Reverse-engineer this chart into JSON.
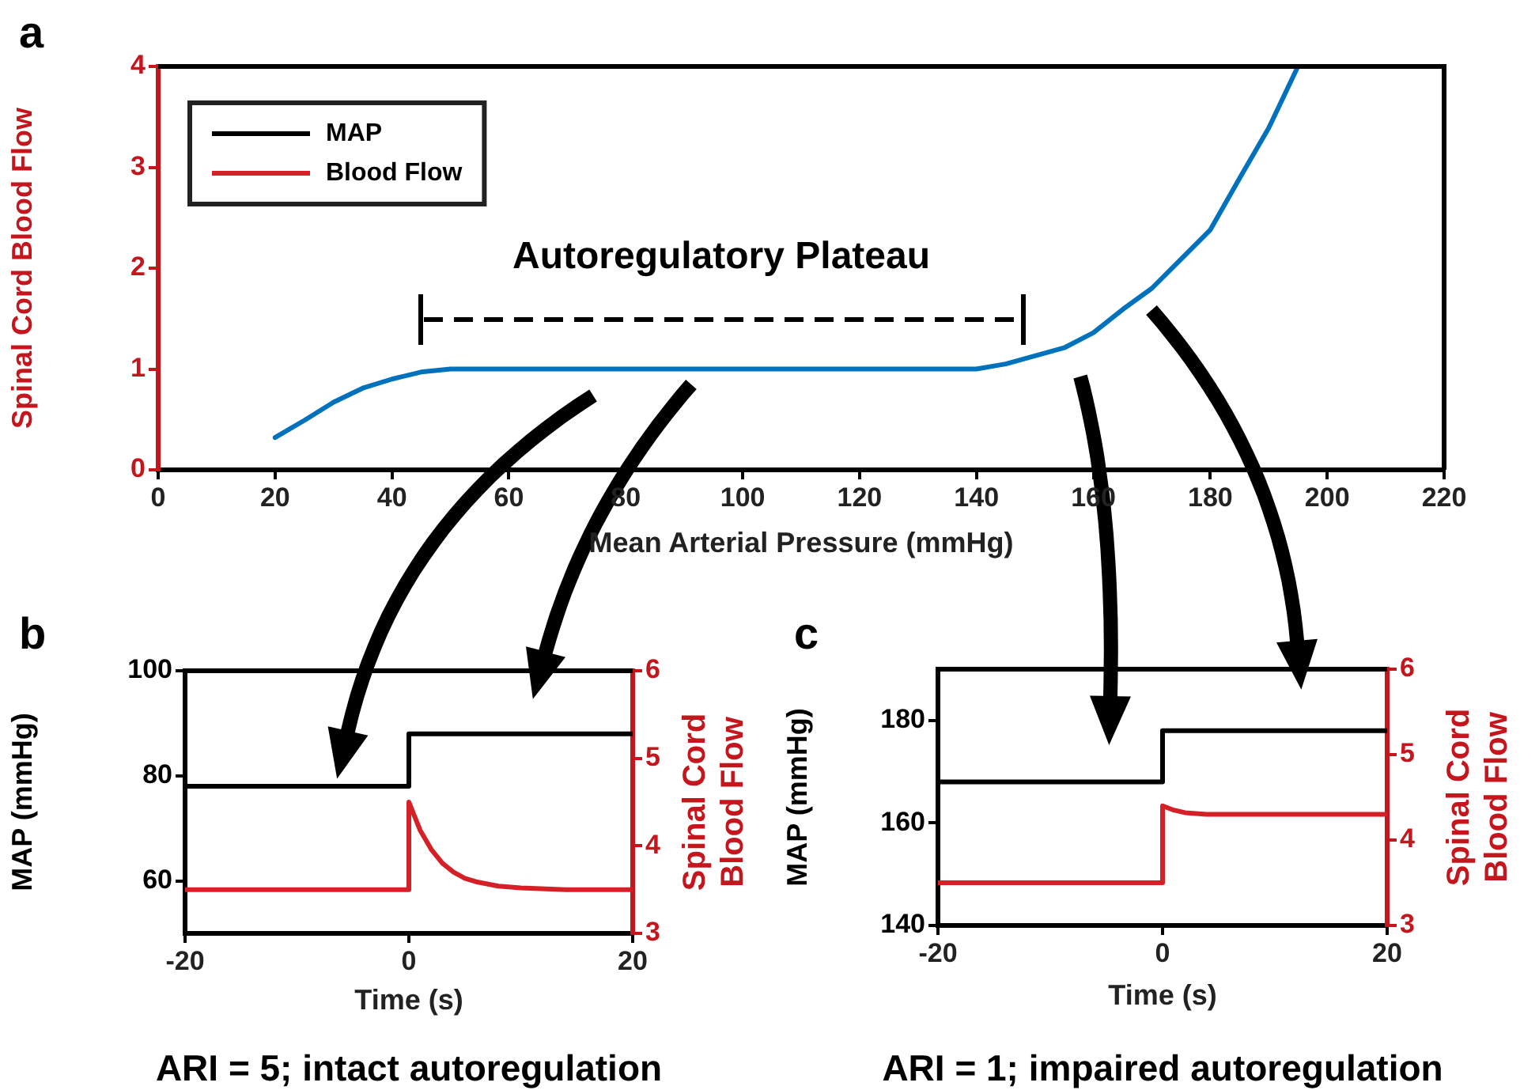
{
  "chart_data": [
    {
      "type": "line",
      "xlabel": "Mean Arterial Pressure (mmHg)",
      "ylabel": "Spinal Cord Blood Flow",
      "x": [
        20,
        25,
        30,
        35,
        40,
        45,
        50,
        55,
        60,
        80,
        100,
        120,
        140,
        145,
        150,
        155,
        160,
        165,
        170,
        175,
        180,
        185,
        190,
        195
      ],
      "series": [
        {
          "color": "#0072bd",
          "values": [
            0.32,
            0.49,
            0.67,
            0.81,
            0.9,
            0.97,
            1,
            1,
            1,
            1,
            1,
            1,
            1,
            1.05,
            1.13,
            1.21,
            1.36,
            1.59,
            1.8,
            2.09,
            2.38,
            2.89,
            3.39,
            4
          ]
        },
        {
          "name": "MAP",
          "color": "#000000",
          "values": [
            null,
            null,
            null,
            null,
            null,
            null,
            null,
            null,
            null,
            null,
            null,
            null,
            null,
            null,
            null,
            null,
            null,
            null,
            null,
            null,
            null,
            null,
            null,
            null
          ]
        },
        {
          "name": "Blood Flow",
          "color": "#d62027",
          "values": [
            null,
            null,
            null,
            null,
            null,
            null,
            null,
            null,
            null,
            null,
            null,
            null,
            null,
            null,
            null,
            null,
            null,
            null,
            null,
            null,
            null,
            null,
            null,
            null
          ]
        }
      ],
      "xlim": [
        0,
        220
      ],
      "xticks": [
        0,
        20,
        40,
        60,
        80,
        100,
        120,
        140,
        160,
        180,
        200,
        220
      ],
      "ylim": [
        0,
        4
      ],
      "yticks": [
        0,
        1,
        2,
        3,
        4
      ],
      "annotations": [
        "a",
        "Autoregulatory Plateau"
      ],
      "legend": "top left"
    },
    {
      "type": "line",
      "xlabel": "Time (s)",
      "ylabel": "MAP (mmHg)",
      "y2label": "Spinal Cord Blood Flow",
      "annotations": [
        "b",
        "ARI = 5; intact autoregulation"
      ],
      "series": [
        {
          "type": "step",
          "color": "#000000",
          "x": [
            -20,
            0,
            20
          ],
          "values": [
            78,
            88,
            88
          ]
        },
        {
          "color": "#d62027",
          "axis": "y2",
          "x": [
            -20,
            0,
            0,
            1,
            2,
            3,
            4,
            5,
            6,
            8,
            10,
            14,
            20
          ],
          "values": [
            3.5,
            3.5,
            4.5,
            4.18,
            3.96,
            3.8,
            3.7,
            3.63,
            3.59,
            3.54,
            3.52,
            3.5,
            3.5
          ]
        }
      ],
      "xlim": [
        -20,
        20
      ],
      "xticks": [
        -20,
        0,
        20
      ],
      "ylim": [
        50,
        100
      ],
      "yticks": [
        60,
        80,
        100
      ],
      "y2lim": [
        3,
        6
      ],
      "y2ticks": [
        3,
        4,
        5,
        6
      ]
    },
    {
      "type": "line",
      "xlabel": "Time (s)",
      "ylabel": "MAP (mmHg)",
      "y2label": "Spinal Cord Blood Flow",
      "annotations": [
        "c",
        "ARI = 1; impaired autoregulation"
      ],
      "series": [
        {
          "type": "step",
          "color": "#000000",
          "x": [
            -20,
            0,
            20
          ],
          "values": [
            168,
            178,
            178
          ]
        },
        {
          "color": "#d62027",
          "axis": "y2",
          "x": [
            -20,
            0,
            0,
            1,
            2,
            4,
            20
          ],
          "values": [
            3.5,
            3.5,
            4.4,
            4.35,
            4.32,
            4.3,
            4.3
          ]
        }
      ],
      "xlim": [
        -20,
        20
      ],
      "xticks": [
        -20,
        0,
        20
      ],
      "ylim": [
        140,
        190
      ],
      "yticks": [
        140,
        160,
        180
      ],
      "y2lim": [
        3,
        6
      ],
      "y2ticks": [
        3,
        4,
        5,
        6
      ]
    }
  ]
}
